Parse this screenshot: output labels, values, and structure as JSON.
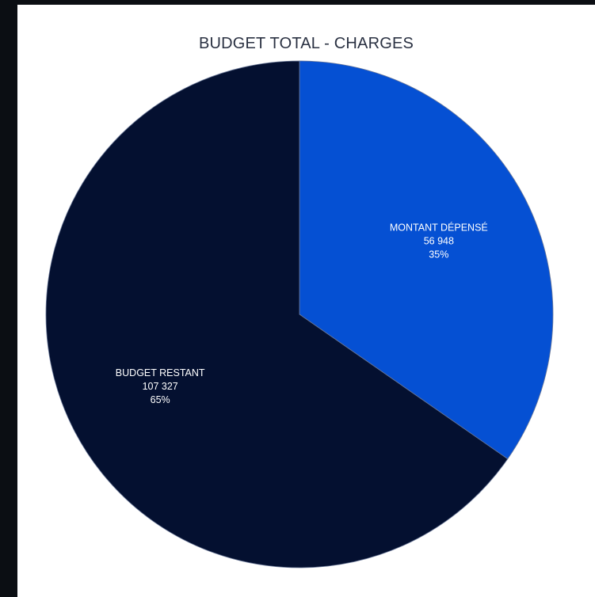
{
  "colors": {
    "page_background": "#0b0e13",
    "card_background": "#ffffff",
    "title_color": "#2a3142",
    "label_color": "#ffffff"
  },
  "chart_data": {
    "type": "pie",
    "title": "BUDGET TOTAL - CHARGES",
    "slices": [
      {
        "label": "MONTANT DÉPENSÉ",
        "value": 56948,
        "value_text": "56 948",
        "percent_text": "35%",
        "color": "#0550d3"
      },
      {
        "label": "BUDGET RESTANT",
        "value": 107327,
        "value_text": "107 327",
        "percent_text": "65%",
        "color": "#041030"
      }
    ],
    "start_angle": "12 o'clock",
    "direction": "clockwise",
    "legend": "none"
  }
}
